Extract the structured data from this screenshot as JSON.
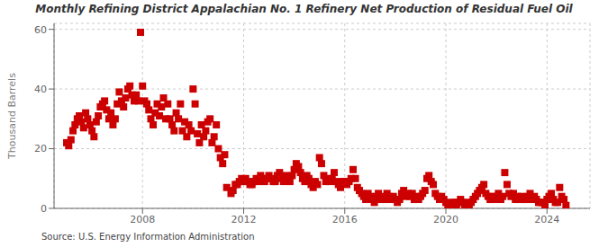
{
  "chart_data": {
    "type": "scatter",
    "title": "Monthly Refining District Appalachian No. 1 Refinery Net Production of Residual Fuel Oil",
    "ylabel": "Thousand Barrels",
    "annotations": [
      "Source: U.S. Energy Information Administration"
    ],
    "color": "#cc0000",
    "marker": "square",
    "grid": true,
    "xlim": [
      2004.5,
      2025.7
    ],
    "xticks": [
      2008,
      2012,
      2016,
      2020,
      2024
    ],
    "ylim": [
      0,
      62
    ],
    "yticks": [
      0,
      20,
      40,
      60
    ],
    "x": [
      2005.0,
      2005.08,
      2005.17,
      2005.25,
      2005.33,
      2005.42,
      2005.5,
      2005.58,
      2005.67,
      2005.75,
      2005.83,
      2005.92,
      2006.0,
      2006.08,
      2006.17,
      2006.25,
      2006.33,
      2006.42,
      2006.5,
      2006.58,
      2006.67,
      2006.75,
      2006.83,
      2006.92,
      2007.0,
      2007.08,
      2007.17,
      2007.25,
      2007.33,
      2007.42,
      2007.5,
      2007.58,
      2007.67,
      2007.75,
      2007.83,
      2007.92,
      2008.0,
      2008.08,
      2008.17,
      2008.25,
      2008.33,
      2008.42,
      2008.5,
      2008.58,
      2008.67,
      2008.75,
      2008.83,
      2008.92,
      2009.0,
      2009.08,
      2009.17,
      2009.25,
      2009.33,
      2009.42,
      2009.5,
      2009.58,
      2009.67,
      2009.75,
      2009.83,
      2009.92,
      2010.0,
      2010.08,
      2010.17,
      2010.25,
      2010.33,
      2010.42,
      2010.5,
      2010.58,
      2010.67,
      2010.75,
      2010.83,
      2010.92,
      2011.0,
      2011.08,
      2011.17,
      2011.25,
      2011.33,
      2011.5,
      2011.58,
      2011.67,
      2011.75,
      2011.83,
      2011.92,
      2012.0,
      2012.08,
      2012.17,
      2012.25,
      2012.33,
      2012.42,
      2012.5,
      2012.58,
      2012.67,
      2012.75,
      2012.83,
      2012.92,
      2013.0,
      2013.08,
      2013.17,
      2013.25,
      2013.33,
      2013.42,
      2013.5,
      2013.58,
      2013.67,
      2013.75,
      2013.83,
      2013.92,
      2014.0,
      2014.08,
      2014.17,
      2014.25,
      2014.33,
      2014.42,
      2014.5,
      2014.58,
      2014.67,
      2014.75,
      2014.83,
      2014.92,
      2015.0,
      2015.08,
      2015.17,
      2015.25,
      2015.33,
      2015.42,
      2015.5,
      2015.58,
      2015.67,
      2015.75,
      2015.83,
      2015.92,
      2016.0,
      2016.08,
      2016.17,
      2016.25,
      2016.33,
      2016.42,
      2016.5,
      2016.58,
      2016.67,
      2016.75,
      2016.83,
      2016.92,
      2017.0,
      2017.08,
      2017.17,
      2017.25,
      2017.33,
      2017.42,
      2017.5,
      2017.58,
      2017.67,
      2017.75,
      2017.83,
      2017.92,
      2018.0,
      2018.08,
      2018.17,
      2018.25,
      2018.33,
      2018.42,
      2018.5,
      2018.58,
      2018.67,
      2018.75,
      2018.83,
      2018.92,
      2019.0,
      2019.08,
      2019.17,
      2019.25,
      2019.33,
      2019.42,
      2019.5,
      2019.58,
      2019.67,
      2019.75,
      2019.83,
      2019.92,
      2020.0,
      2020.08,
      2020.17,
      2020.25,
      2020.33,
      2020.42,
      2020.5,
      2020.58,
      2020.67,
      2020.75,
      2020.83,
      2020.92,
      2021.0,
      2021.08,
      2021.17,
      2021.25,
      2021.33,
      2021.42,
      2021.5,
      2021.58,
      2021.67,
      2021.75,
      2021.83,
      2021.92,
      2022.0,
      2022.08,
      2022.17,
      2022.25,
      2022.33,
      2022.42,
      2022.5,
      2022.58,
      2022.67,
      2022.75,
      2022.83,
      2022.92,
      2023.0,
      2023.08,
      2023.17,
      2023.25,
      2023.33,
      2023.42,
      2023.5,
      2023.58,
      2023.67,
      2023.75,
      2023.83,
      2023.92,
      2024.0,
      2024.08,
      2024.17,
      2024.25,
      2024.33,
      2024.42,
      2024.5,
      2024.58,
      2024.67,
      2024.75
    ],
    "values": [
      22,
      21,
      23,
      26,
      28,
      30,
      31,
      29,
      27,
      32,
      30,
      28,
      26,
      24,
      29,
      31,
      34,
      35,
      36,
      33,
      30,
      32,
      28,
      30,
      35,
      39,
      36,
      34,
      37,
      40,
      41,
      38,
      36,
      38,
      36,
      59,
      41,
      36,
      35,
      33,
      30,
      28,
      32,
      35,
      31,
      34,
      37,
      30,
      35,
      30,
      28,
      26,
      32,
      30,
      35,
      26,
      29,
      24,
      28,
      26,
      40,
      35,
      25,
      22,
      28,
      24,
      26,
      29,
      30,
      22,
      24,
      28,
      20,
      17,
      15,
      18,
      7,
      5,
      6,
      8,
      8,
      9,
      10,
      9,
      10,
      9,
      8,
      8,
      9,
      10,
      9,
      11,
      10,
      9,
      10,
      11,
      10,
      9,
      9,
      11,
      12,
      10,
      9,
      11,
      10,
      9,
      11,
      13,
      15,
      14,
      12,
      10,
      9,
      11,
      10,
      8,
      7,
      9,
      8,
      17,
      15,
      11,
      9,
      10,
      9,
      10,
      12,
      9,
      8,
      7,
      9,
      9,
      8,
      9,
      10,
      13,
      10,
      7,
      6,
      5,
      4,
      3,
      5,
      4,
      3,
      2,
      4,
      5,
      3,
      4,
      3,
      5,
      4,
      3,
      4,
      3,
      2,
      3,
      5,
      6,
      4,
      5,
      4,
      5,
      3,
      4,
      3,
      4,
      5,
      6,
      10,
      11,
      9,
      8,
      5,
      4,
      3,
      4,
      3,
      2,
      1,
      1,
      2,
      2,
      1,
      2,
      3,
      2,
      1,
      2,
      1,
      2,
      3,
      4,
      5,
      6,
      7,
      8,
      5,
      4,
      3,
      4,
      3,
      4,
      5,
      3,
      4,
      12,
      8,
      5,
      4,
      5,
      3,
      4,
      3,
      4,
      3,
      3,
      4,
      5,
      3,
      4,
      3,
      2,
      2,
      2,
      1,
      3,
      4,
      5,
      3,
      2,
      2,
      7,
      4,
      3,
      1
    ]
  }
}
